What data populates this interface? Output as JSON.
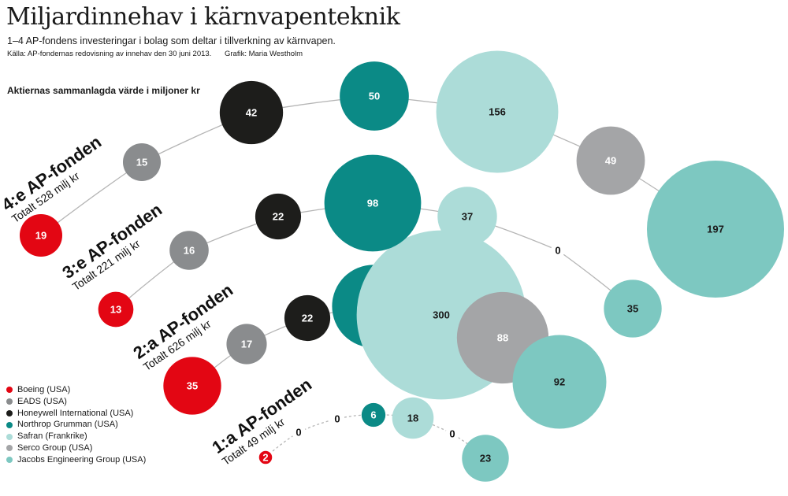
{
  "header": {
    "title": "Miljardinnehav i kärnvapenteknik",
    "subtitle": "1–4 AP-fondens investeringar i bolag som deltar i tillverkning av kärnvapen.",
    "source": "Källa: AP-fondernas redovisning av innehav den 30 juni 2013.",
    "credit": "Grafik: Maria Westholm"
  },
  "chart_data": {
    "type": "bubble",
    "value_label": "Aktiernas sammanlagda värde i miljoner kr",
    "companies": [
      {
        "name": "Boeing (USA)",
        "color": "#e30613"
      },
      {
        "name": "EADS (USA)",
        "color": "#8a8c8e"
      },
      {
        "name": "Honeywell International (USA)",
        "color": "#1d1d1b"
      },
      {
        "name": "Northrop Grumman (USA)",
        "color": "#0b8a86"
      },
      {
        "name": "Safran (Frankrike)",
        "color": "#acdcd8"
      },
      {
        "name": "Serco Group (USA)",
        "color": "#a4a5a7"
      },
      {
        "name": "Jacobs Engineering Group (USA)",
        "color": "#7dc8c1"
      }
    ],
    "funds": [
      {
        "name": "1:a AP-fonden",
        "total": "Totalt 49 milj kr",
        "values": [
          "2",
          "0",
          "0",
          "6",
          "18",
          "0",
          "23"
        ]
      },
      {
        "name": "2:a AP-fonden",
        "total": "Totalt 626 milj kr",
        "values": [
          "35",
          "17",
          "22",
          "72",
          "300",
          "88",
          "92"
        ]
      },
      {
        "name": "3:e AP-fonden",
        "total": "Totalt 221 milj kr",
        "values": [
          "13",
          "16",
          "22",
          "98",
          "37",
          "0",
          "35"
        ]
      },
      {
        "name": "4:e AP-fonden",
        "total": "Totalt 528 milj kr",
        "values": [
          "19",
          "15",
          "42",
          "50",
          "156",
          "49",
          "197"
        ]
      }
    ]
  }
}
